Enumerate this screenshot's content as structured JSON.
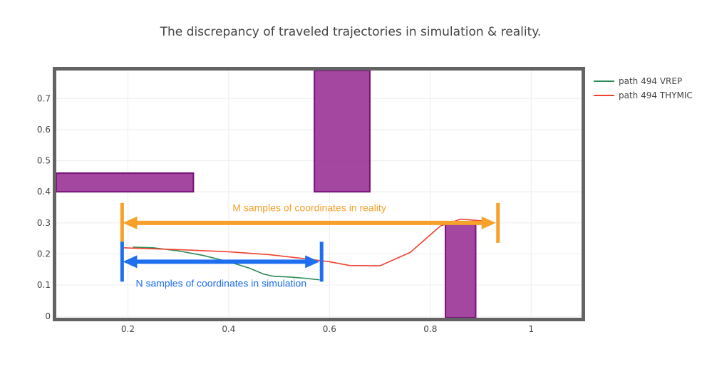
{
  "chart_data": {
    "type": "line",
    "title": "The discrepancy of traveled trajectories in simulation & reality.",
    "xlabel": "",
    "ylabel": "",
    "xlim": [
      0.058,
      1.1
    ],
    "ylim": [
      -0.005,
      0.79
    ],
    "x_ticks": [
      0.2,
      0.4,
      0.6,
      0.8,
      1
    ],
    "x_tick_labels": [
      "0.2",
      "0.4",
      "0.6",
      "0.8",
      "1"
    ],
    "y_ticks": [
      0,
      0.1,
      0.2,
      0.3,
      0.4,
      0.5,
      0.6,
      0.7
    ],
    "y_tick_labels": [
      "0",
      "0.1",
      "0.2",
      "0.3",
      "0.4",
      "0.5",
      "0.6",
      "0.7"
    ],
    "grid": true,
    "legend_position": "top-right",
    "series": [
      {
        "name": "path 494 VREP",
        "color": "#2e8b57",
        "x": [
          0.21,
          0.25,
          0.3,
          0.35,
          0.4,
          0.44,
          0.47,
          0.49,
          0.52,
          0.55,
          0.58
        ],
        "y": [
          0.222,
          0.22,
          0.21,
          0.195,
          0.175,
          0.155,
          0.135,
          0.128,
          0.126,
          0.122,
          0.117
        ]
      },
      {
        "name": "path 494 THYMIC",
        "color": "#f0422f",
        "x": [
          0.19,
          0.3,
          0.4,
          0.48,
          0.55,
          0.6,
          0.64,
          0.7,
          0.76,
          0.82,
          0.86,
          0.9,
          0.92
        ],
        "y": [
          0.22,
          0.214,
          0.207,
          0.198,
          0.185,
          0.175,
          0.163,
          0.162,
          0.205,
          0.29,
          0.312,
          0.307,
          0.298
        ]
      }
    ],
    "obstacles": [
      {
        "x0": 0.058,
        "x1": 0.33,
        "y0": 0.4,
        "y1": 0.46
      },
      {
        "x0": 0.57,
        "x1": 0.68,
        "y0": 0.4,
        "y1": 0.79
      },
      {
        "x0": 0.83,
        "x1": 0.89,
        "y0": -0.005,
        "y1": 0.3
      }
    ],
    "obstacle_color": "#93278f",
    "annotations": [
      {
        "text": "M samples of coordinates in reality",
        "color": "#f7a02a",
        "x0": 0.19,
        "x1": 0.93,
        "y": 0.3,
        "text_y": 0.338
      },
      {
        "text": "N samples of coordinates in simulation",
        "color": "#1e6ff0",
        "x0": 0.19,
        "x1": 0.58,
        "y": 0.175,
        "text_y": 0.095
      }
    ]
  }
}
